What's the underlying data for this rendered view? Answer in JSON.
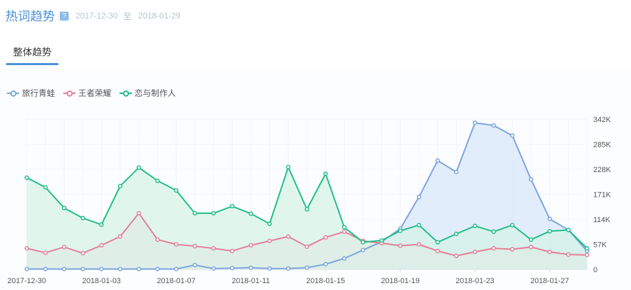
{
  "header": {
    "title": "热词趋势",
    "help_icon": "?",
    "date_start": "2017-12-30",
    "date_sep": "至",
    "date_end": "2018-01-29"
  },
  "tabs": [
    {
      "label": "整体趋势"
    }
  ],
  "chart_data": {
    "type": "area",
    "title": "热词趋势",
    "x": [
      "2017-12-30",
      "2017-12-31",
      "2018-01-01",
      "2018-01-02",
      "2018-01-03",
      "2018-01-04",
      "2018-01-05",
      "2018-01-06",
      "2018-01-07",
      "2018-01-08",
      "2018-01-09",
      "2018-01-10",
      "2018-01-11",
      "2018-01-12",
      "2018-01-13",
      "2018-01-14",
      "2018-01-15",
      "2018-01-16",
      "2018-01-17",
      "2018-01-18",
      "2018-01-19",
      "2018-01-20",
      "2018-01-21",
      "2018-01-22",
      "2018-01-23",
      "2018-01-24",
      "2018-01-25",
      "2018-01-26",
      "2018-01-27",
      "2018-01-28",
      "2018-01-29"
    ],
    "x_tick_labels": [
      "2017-12-30",
      "2018-01-03",
      "2018-01-07",
      "2018-01-11",
      "2018-01-15",
      "2018-01-19",
      "2018-01-23",
      "2018-01-27"
    ],
    "y_tick_labels": [
      "0",
      "57K",
      "114K",
      "171K",
      "228K",
      "285K",
      "342K"
    ],
    "ylim": [
      0,
      342000
    ],
    "y_axis_position": "right",
    "legend_position": "top-left",
    "series": [
      {
        "name": "旅行青蛙",
        "color": "#7ba3e0",
        "fill": "#d7e6fa",
        "values": [
          1000,
          1000,
          1000,
          1000,
          1000,
          1000,
          1000,
          1000,
          1000,
          10000,
          2000,
          3000,
          4000,
          2000,
          2000,
          4000,
          12000,
          25000,
          44000,
          63000,
          93000,
          165000,
          248000,
          222000,
          334000,
          328000,
          305000,
          205000,
          115000,
          90000,
          42000
        ]
      },
      {
        "name": "王者荣耀",
        "color": "#e57d97",
        "fill": "#f7dde3",
        "values": [
          48000,
          38000,
          51000,
          37000,
          55000,
          75000,
          128000,
          68000,
          57000,
          53000,
          48000,
          42000,
          55000,
          65000,
          75000,
          52000,
          73000,
          86000,
          65000,
          60000,
          54000,
          57000,
          42000,
          31000,
          40000,
          48000,
          46000,
          51000,
          40000,
          34000,
          33000
        ]
      },
      {
        "name": "恋与制作人",
        "color": "#1fbd86",
        "fill": "#d4f2e6",
        "values": [
          209000,
          187000,
          140000,
          117000,
          102000,
          190000,
          232000,
          202000,
          180000,
          128000,
          128000,
          144000,
          127000,
          104000,
          233000,
          137000,
          218000,
          96000,
          62000,
          66000,
          88000,
          101000,
          62000,
          81000,
          99000,
          86000,
          101000,
          68000,
          87000,
          90000,
          48000
        ]
      }
    ]
  }
}
